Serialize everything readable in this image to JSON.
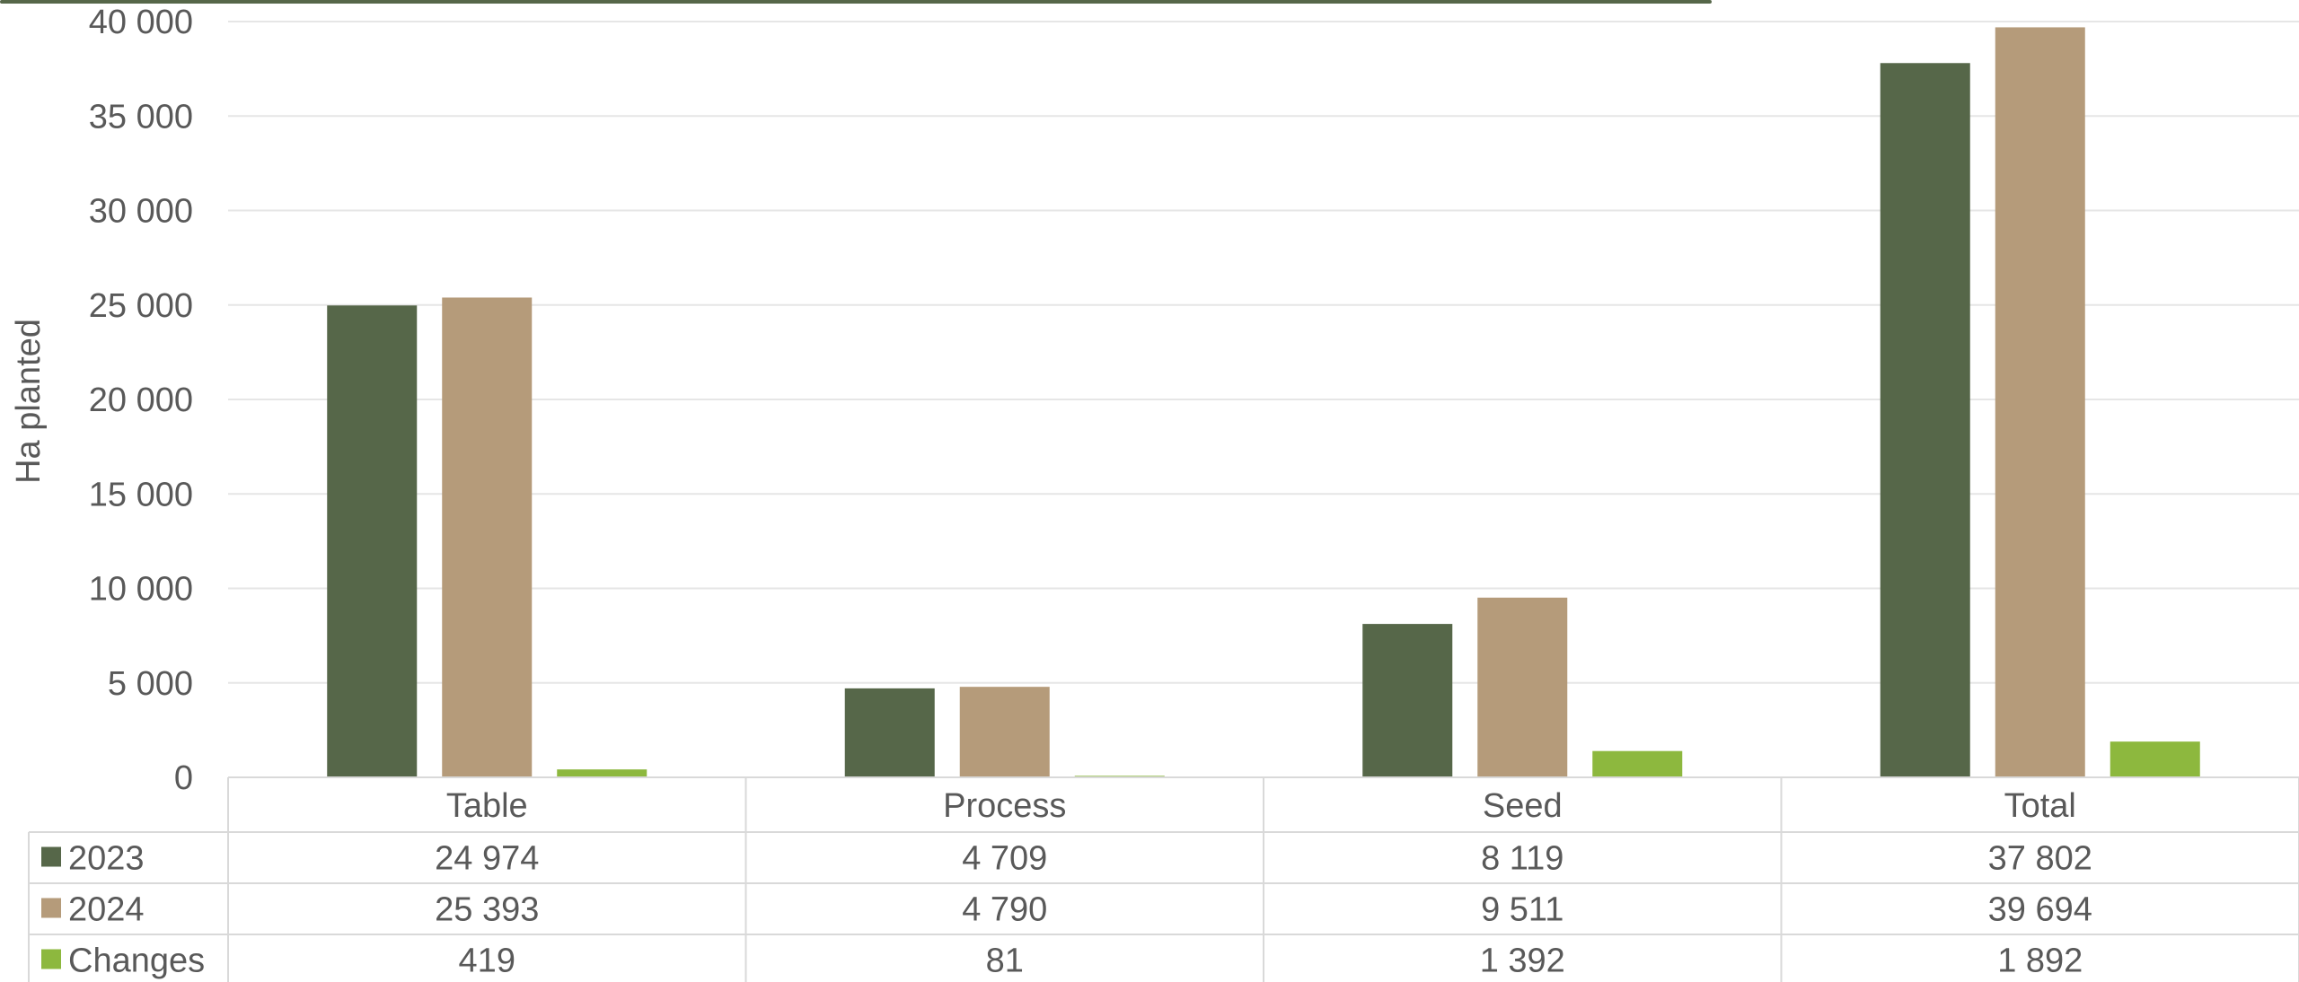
{
  "chart_data": {
    "type": "bar",
    "ylabel": "Ha planted",
    "ylim": [
      0,
      40000
    ],
    "yticks": [
      0,
      5000,
      10000,
      15000,
      20000,
      25000,
      30000,
      35000,
      40000
    ],
    "ytick_labels": [
      "0",
      "5 000",
      "10 000",
      "15 000",
      "20 000",
      "25 000",
      "30 000",
      "35 000",
      "40 000"
    ],
    "grid": true,
    "legend": "data-table",
    "categories": [
      "Table",
      "Process",
      "Seed",
      "Total"
    ],
    "series": [
      {
        "name": "2023",
        "color": "#566749",
        "values": [
          24974,
          4709,
          8119,
          37802
        ],
        "labels": [
          "24 974",
          "4 709",
          "8 119",
          "37 802"
        ]
      },
      {
        "name": "2024",
        "color": "#b59b7a",
        "values": [
          25393,
          4790,
          9511,
          39694
        ],
        "labels": [
          "25 393",
          "4 790",
          "9 511",
          "39 694"
        ]
      },
      {
        "name": "Changes",
        "color": "#8db83e",
        "values": [
          419,
          81,
          1392,
          1892
        ],
        "labels": [
          "419",
          "81",
          "1 392",
          "1 892"
        ]
      }
    ]
  },
  "colors": {
    "top_bar": "#566749"
  }
}
